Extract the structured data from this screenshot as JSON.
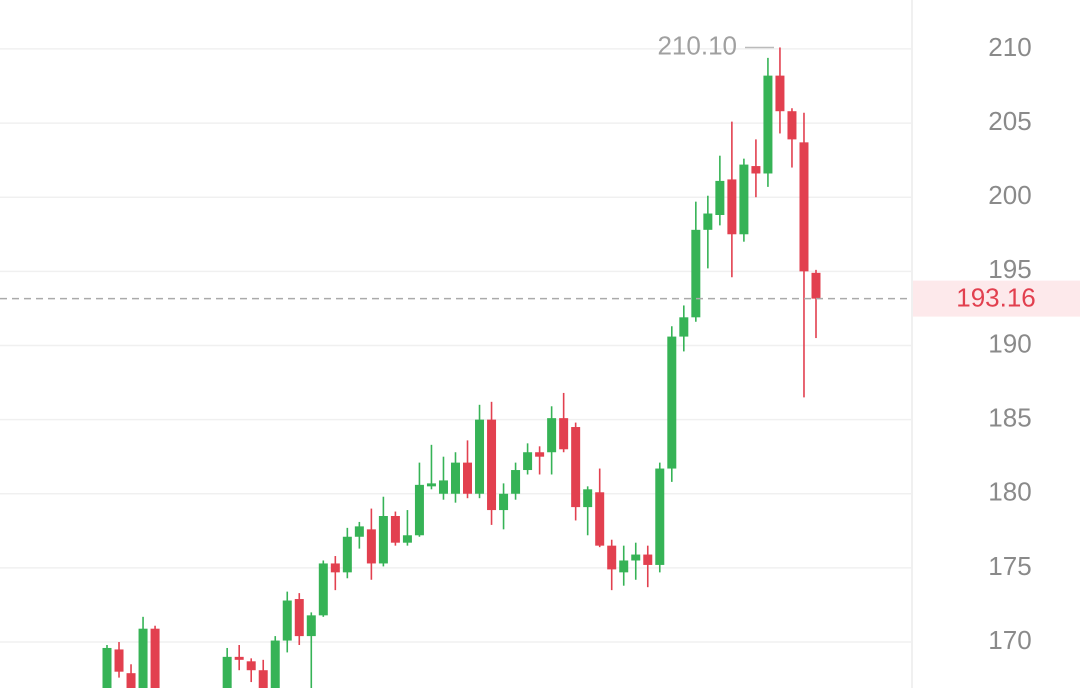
{
  "chart_data": {
    "type": "candlestick",
    "open": [
      166.5,
      169.5,
      167.9,
      166.8,
      170.9,
      null,
      null,
      null,
      null,
      null,
      166.5,
      169.0,
      168.7,
      168.1,
      166.7,
      170.1,
      172.9,
      170.4,
      171.8,
      175.3,
      174.7,
      177.1,
      177.6,
      175.3,
      178.5,
      176.7,
      177.2,
      180.5,
      180.0,
      180.0,
      182.1,
      180.0,
      185.0,
      178.9,
      180.0,
      181.6,
      182.8,
      182.8,
      185.1,
      184.5,
      179.1,
      180.1,
      176.5,
      174.7,
      175.5,
      175.9,
      175.2,
      181.7,
      190.6,
      191.9,
      197.8,
      198.8,
      201.2,
      197.5,
      202.1,
      201.6,
      208.2,
      205.8,
      203.7,
      194.9
    ],
    "high": [
      169.8,
      170.0,
      168.5,
      171.7,
      171.1,
      null,
      null,
      null,
      null,
      null,
      169.6,
      169.8,
      168.9,
      168.8,
      170.4,
      173.4,
      173.3,
      172.0,
      175.5,
      175.8,
      177.7,
      178.1,
      179.0,
      179.8,
      178.8,
      178.9,
      182.1,
      183.3,
      182.5,
      182.8,
      183.6,
      186.0,
      186.2,
      180.7,
      182.1,
      183.4,
      183.2,
      185.9,
      186.8,
      184.8,
      180.5,
      181.7,
      176.9,
      176.5,
      176.7,
      176.5,
      182.1,
      191.3,
      192.7,
      199.7,
      200.1,
      202.8,
      205.1,
      202.6,
      203.9,
      209.4,
      210.1,
      206.0,
      205.7,
      195.1
    ],
    "low": [
      166.0,
      167.6,
      166.0,
      166.3,
      166.2,
      null,
      null,
      null,
      null,
      null,
      166.0,
      168.1,
      167.3,
      166.2,
      166.2,
      169.3,
      169.8,
      166.5,
      171.7,
      173.5,
      174.3,
      176.3,
      174.2,
      175.1,
      176.5,
      176.5,
      177.1,
      180.3,
      179.6,
      179.4,
      179.7,
      179.7,
      177.9,
      177.6,
      179.6,
      181.3,
      181.3,
      181.3,
      182.8,
      178.2,
      177.2,
      176.4,
      173.5,
      173.8,
      174.2,
      173.7,
      174.7,
      180.8,
      189.6,
      191.6,
      195.2,
      198.1,
      194.6,
      197.0,
      200.0,
      200.7,
      204.3,
      202.0,
      186.5,
      190.5
    ],
    "close": [
      169.6,
      168.0,
      166.5,
      170.9,
      166.6,
      null,
      null,
      null,
      null,
      null,
      169.0,
      168.8,
      168.1,
      166.6,
      170.1,
      172.8,
      170.4,
      171.8,
      175.3,
      174.7,
      177.1,
      177.8,
      175.3,
      178.5,
      176.7,
      177.2,
      180.6,
      180.7,
      180.9,
      182.1,
      180.0,
      185.0,
      178.9,
      180.0,
      181.6,
      182.8,
      182.5,
      185.1,
      183.0,
      179.1,
      180.3,
      176.5,
      174.9,
      175.5,
      175.9,
      175.2,
      181.7,
      190.6,
      191.9,
      197.8,
      198.9,
      201.1,
      197.5,
      202.2,
      201.6,
      208.2,
      205.8,
      203.9,
      195.0,
      193.16
    ],
    "up_color": "#36b356",
    "down_color": "#e2404f",
    "ylim": [
      166.9,
      213.3
    ],
    "yticks": [
      170,
      175,
      180,
      185,
      190,
      195,
      200,
      205,
      210
    ],
    "grid": true,
    "high_marker": {
      "value": 210.1,
      "label": "210.10"
    },
    "last_price": 193.16
  }
}
